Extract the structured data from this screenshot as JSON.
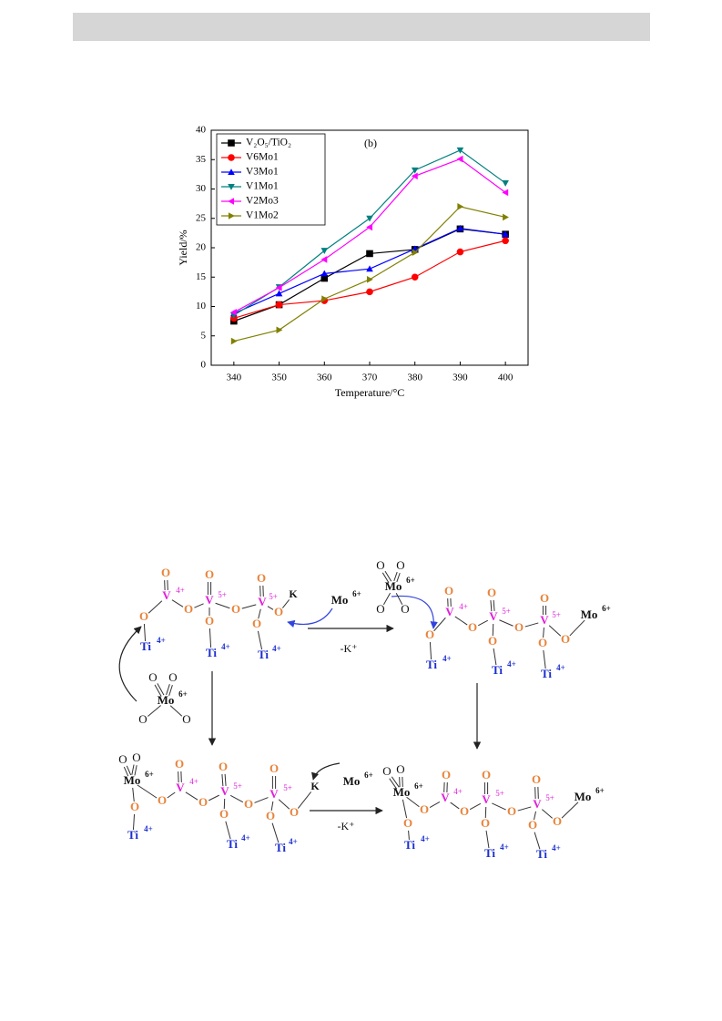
{
  "chart_data": {
    "type": "line",
    "annotation": "(b)",
    "xlabel": "Temperature/°C",
    "ylabel": "Yield/%",
    "x": [
      340,
      350,
      360,
      370,
      380,
      390,
      400
    ],
    "xlim": [
      335,
      405
    ],
    "xticks": [
      340,
      350,
      360,
      370,
      380,
      390,
      400
    ],
    "ylim": [
      0,
      40
    ],
    "yticks": [
      0,
      5,
      10,
      15,
      20,
      25,
      30,
      35,
      40
    ],
    "legend": "upper left",
    "series": [
      {
        "name": "V₂O₅/TiO₂",
        "color": "#000000",
        "marker": "square",
        "values": [
          7.5,
          10.3,
          14.8,
          19.0,
          19.7,
          23.2,
          22.3
        ]
      },
      {
        "name": "V6Mo1",
        "color": "#ff0000",
        "marker": "circle",
        "values": [
          8.0,
          10.3,
          11.0,
          12.5,
          15.0,
          19.3,
          21.2
        ]
      },
      {
        "name": "V3Mo1",
        "color": "#0000ff",
        "marker": "triangle-up",
        "values": [
          8.8,
          12.2,
          15.6,
          16.4,
          19.8,
          23.3,
          22.3
        ]
      },
      {
        "name": "V1Mo1",
        "color": "#008080",
        "marker": "triangle-down",
        "values": [
          8.5,
          13.3,
          19.5,
          25.0,
          33.2,
          36.6,
          31.0
        ]
      },
      {
        "name": "V2Mo3",
        "color": "#ff00ff",
        "marker": "triangle-left",
        "values": [
          9.0,
          13.2,
          18.0,
          23.5,
          32.2,
          35.1,
          29.4
        ]
      },
      {
        "name": "V1Mo2",
        "color": "#808000",
        "marker": "triangle-right",
        "values": [
          4.1,
          6.0,
          11.3,
          14.6,
          19.2,
          27.0,
          25.2
        ]
      }
    ]
  },
  "scheme": {
    "labels": [
      "O",
      "V",
      "4+",
      "O",
      "V",
      "5+",
      "O",
      "V",
      "5+",
      "O",
      "O",
      "O",
      "Ti",
      "4+",
      "O",
      "Ti",
      "4+",
      "O",
      "Ti",
      "4+",
      "O",
      "K",
      "Mo",
      "6+",
      "-K⁺",
      "O",
      "O",
      "Mo",
      "6+",
      "O",
      "O",
      "O",
      "O",
      "Mo",
      "6+",
      "O",
      "O",
      "O",
      "V",
      "4+",
      "O",
      "V",
      "5+",
      "O",
      "V",
      "5+",
      "O",
      "O",
      "O",
      "Ti",
      "4+",
      "O",
      "Ti",
      "4+",
      "O",
      "Ti",
      "4+",
      "O",
      "Mo",
      "6+",
      "O",
      "O",
      "Mo",
      "6+",
      "O",
      "Ti",
      "4+",
      "O",
      "O",
      "V",
      "4+",
      "O",
      "O",
      "V",
      "5+",
      "O",
      "O",
      "V",
      "5+",
      "O",
      "Ti",
      "4+",
      "O",
      "Ti",
      "4+",
      "O",
      "K",
      "Mo",
      "6+",
      "-K⁺",
      "O",
      "O",
      "Mo",
      "6+",
      "O",
      "Ti",
      "4+",
      "O",
      "O",
      "V",
      "4+",
      "O",
      "O",
      "V",
      "5+",
      "O",
      "O",
      "V",
      "5+",
      "O",
      "Ti",
      "4+",
      "O",
      "Ti",
      "4+",
      "O",
      "Mo",
      "6+"
    ]
  }
}
